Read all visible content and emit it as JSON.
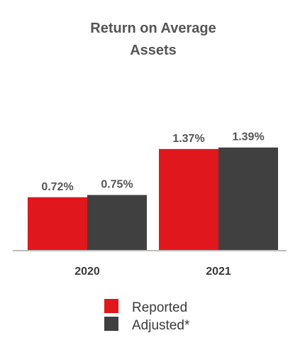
{
  "chart_data": {
    "type": "bar",
    "title_lines": [
      "Return on Average",
      "Assets"
    ],
    "categories": [
      "2020",
      "2021"
    ],
    "series": [
      {
        "name": "Reported",
        "color": "#e0171d",
        "values": [
          0.72,
          1.37
        ],
        "labels": [
          "0.72%",
          "1.37%"
        ]
      },
      {
        "name": "Adjusted*",
        "color": "#404040",
        "values": [
          0.75,
          1.39
        ],
        "labels": [
          "0.75%",
          "1.39%"
        ]
      }
    ],
    "ylim": [
      0,
      1.6
    ],
    "grid": false,
    "legend_position": "bottom",
    "axis_color": "#bbbbbb"
  }
}
